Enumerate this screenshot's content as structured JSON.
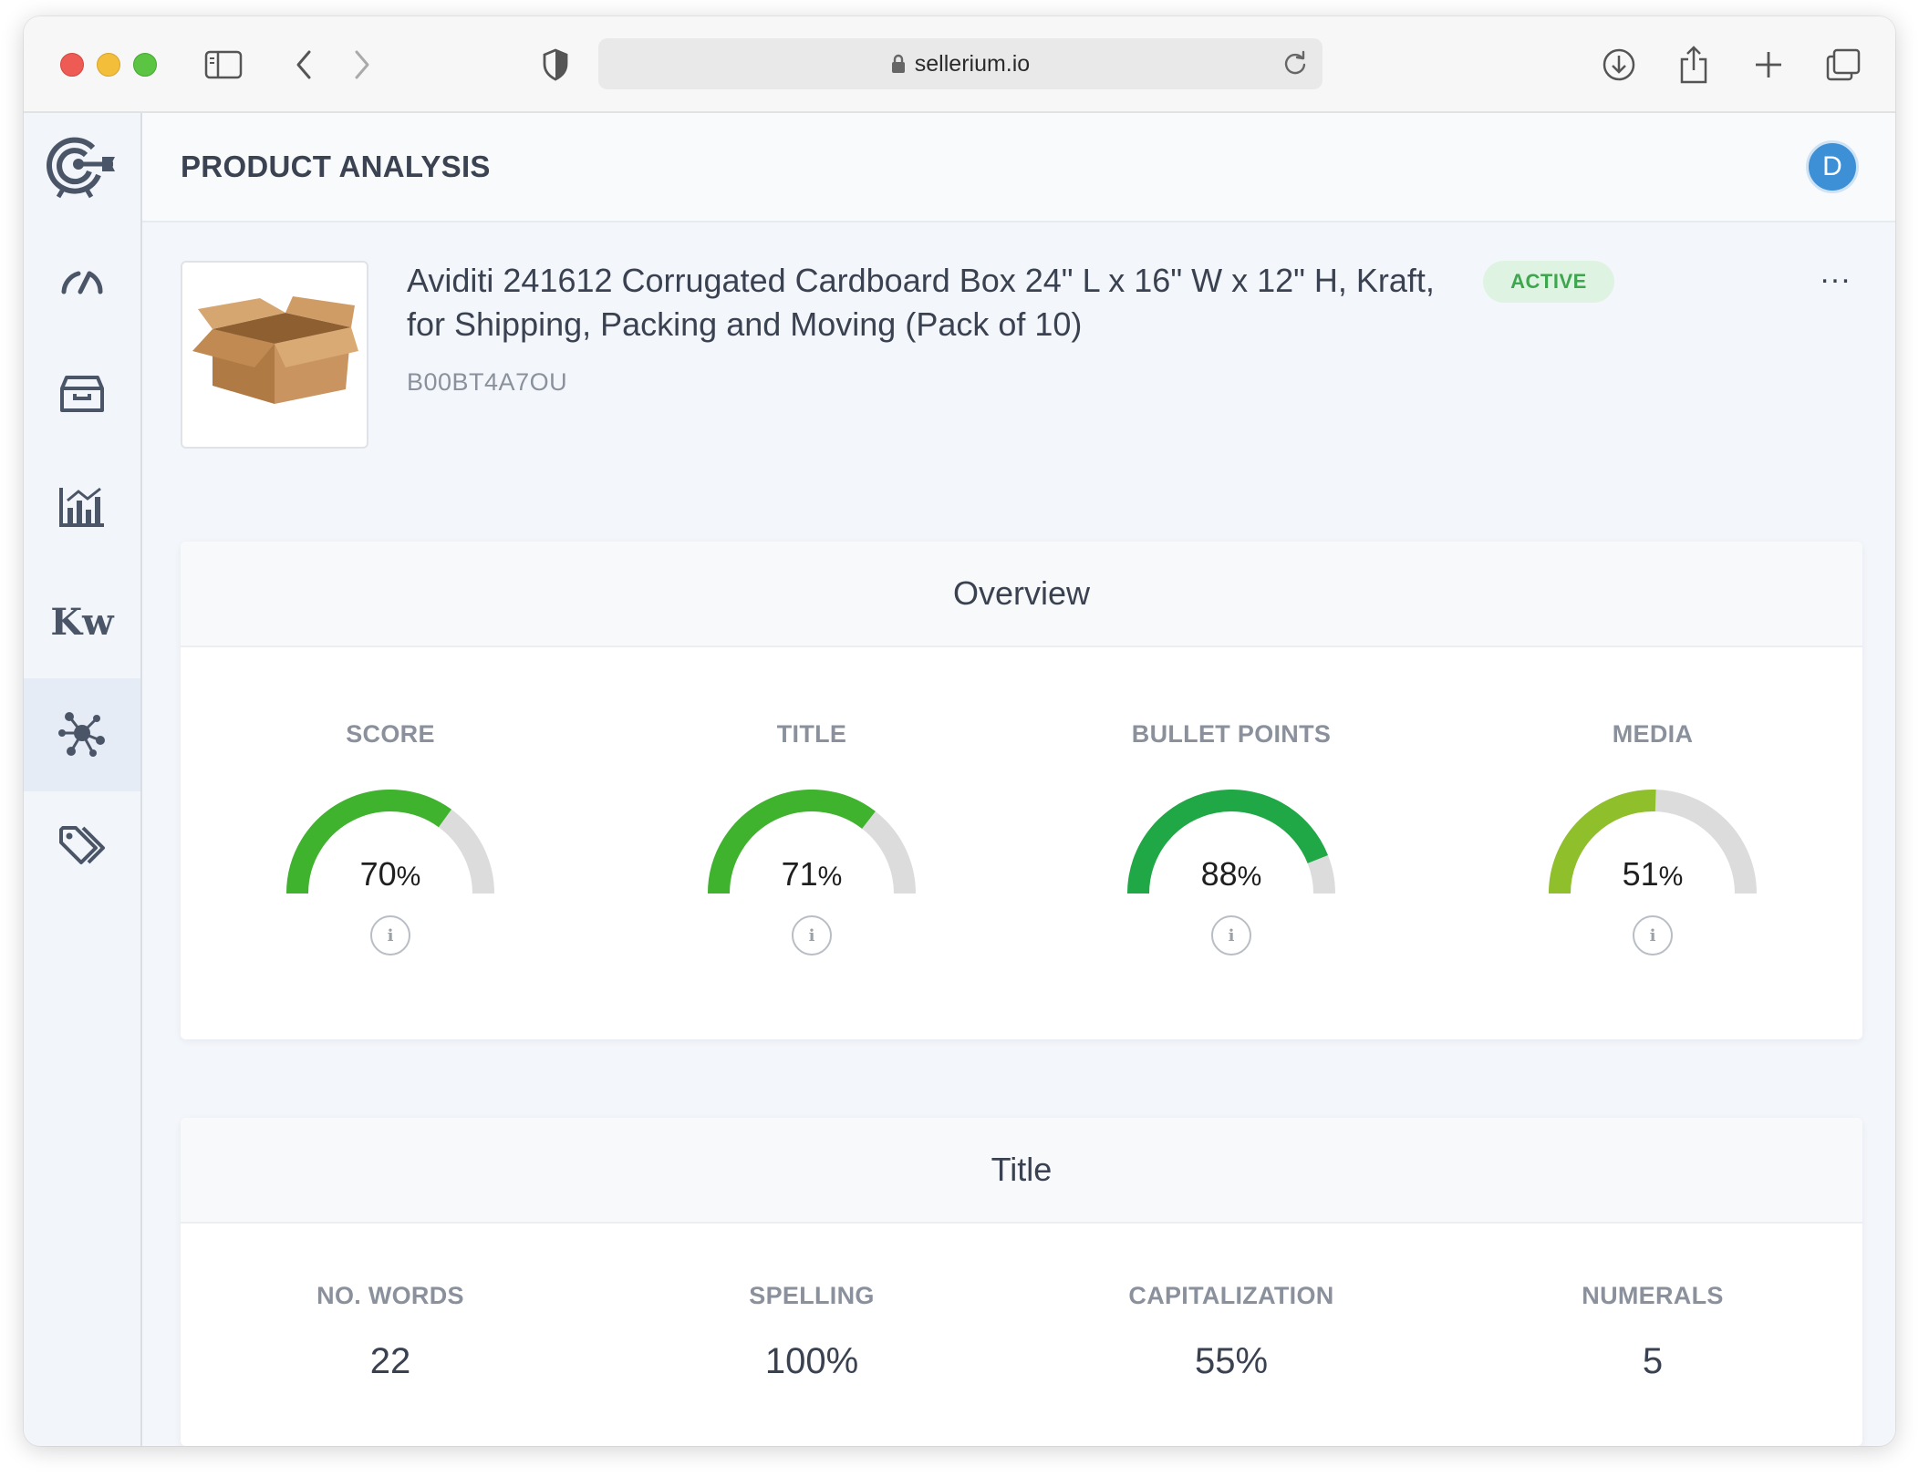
{
  "browser": {
    "url": "sellerium.io"
  },
  "header": {
    "page_title": "PRODUCT ANALYSIS",
    "avatar_initial": "D"
  },
  "sidebar": {
    "items": [
      {
        "name": "logo",
        "icon": "target-logo-icon"
      },
      {
        "name": "dashboard",
        "icon": "speedometer-icon"
      },
      {
        "name": "inventory",
        "icon": "archive-box-icon"
      },
      {
        "name": "analytics",
        "icon": "bar-chart-icon"
      },
      {
        "name": "keywords",
        "icon": "keyword-icon",
        "label": "Kw"
      },
      {
        "name": "product-analysis",
        "icon": "network-icon",
        "active": true
      },
      {
        "name": "tags",
        "icon": "tags-icon"
      }
    ]
  },
  "product": {
    "title": "Aviditi 241612 Corrugated Cardboard Box 24\" L x 16\" W x 12\" H, Kraft, for Shipping, Packing and Moving (Pack of 10)",
    "asin": "B00BT4A7OU",
    "status": "ACTIVE",
    "more_label": "..."
  },
  "overview": {
    "heading": "Overview",
    "metrics": [
      {
        "label": "SCORE",
        "value": "70",
        "unit": "%",
        "fraction": 0.7,
        "color": "#3fb22e"
      },
      {
        "label": "TITLE",
        "value": "71",
        "unit": "%",
        "fraction": 0.71,
        "color": "#3fb22e"
      },
      {
        "label": "BULLET POINTS",
        "value": "88",
        "unit": "%",
        "fraction": 0.88,
        "color": "#1fa845"
      },
      {
        "label": "MEDIA",
        "value": "51",
        "unit": "%",
        "fraction": 0.51,
        "color": "#8fbf2a"
      }
    ],
    "info_symbol": "i"
  },
  "title_section": {
    "heading": "Title",
    "stats": [
      {
        "label": "NO. WORDS",
        "value": "22"
      },
      {
        "label": "SPELLING",
        "value": "100%"
      },
      {
        "label": "CAPITALIZATION",
        "value": "55%"
      },
      {
        "label": "NUMERALS",
        "value": "5"
      }
    ]
  },
  "colors": {
    "accent": "#3d8fd6",
    "gauge_track": "#dcdcdc",
    "status_green": "#3ea64e",
    "sidebar_icon": "#4b5568"
  }
}
